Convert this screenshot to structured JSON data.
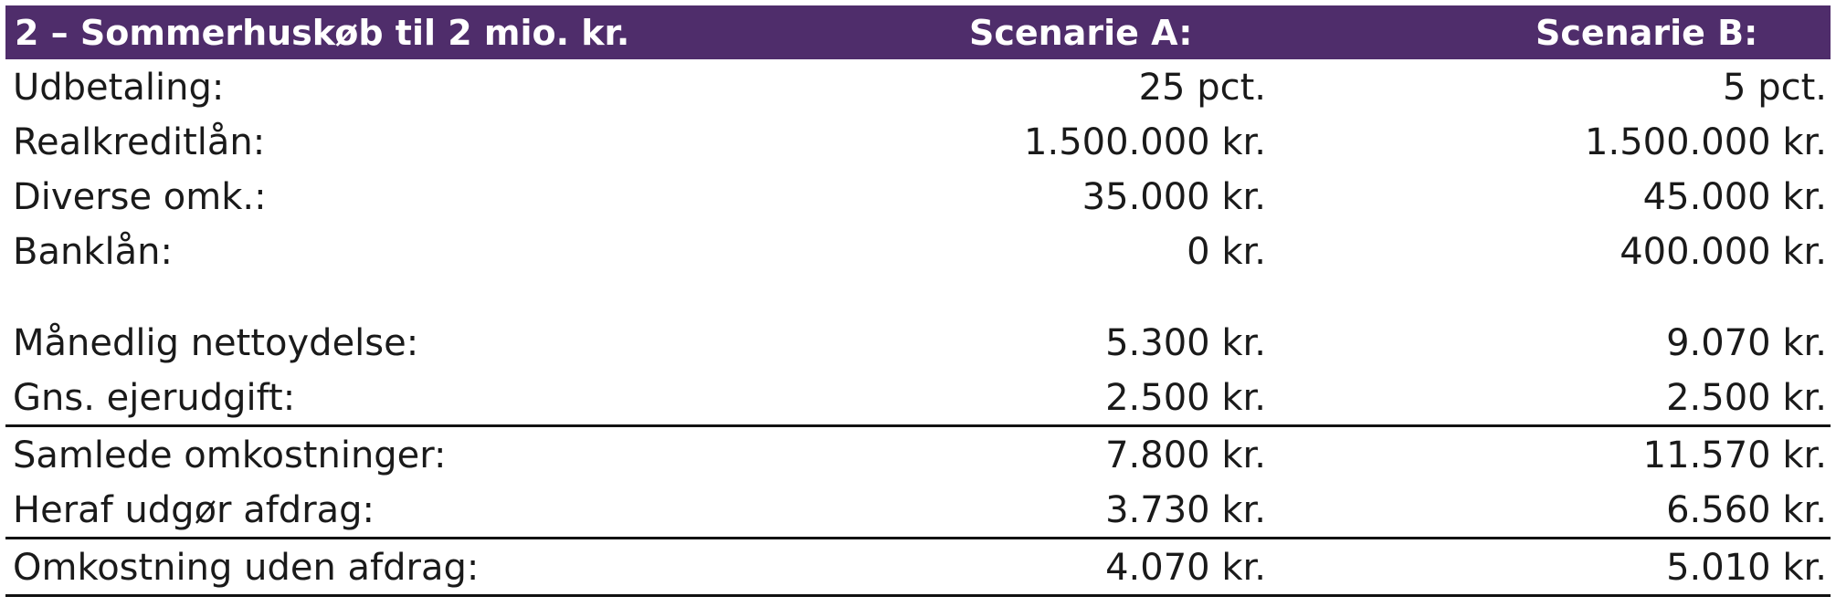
{
  "header": {
    "title": "2 – Sommerhuskøb til 2 mio. kr.",
    "col_a": "Scenarie A:",
    "col_b": "Scenarie B:"
  },
  "rows": [
    {
      "label": "Udbetaling:",
      "a": "25 pct.",
      "b": "5 pct."
    },
    {
      "label": "Realkreditlån:",
      "a": "1.500.000 kr.",
      "b": "1.500.000 kr."
    },
    {
      "label": "Diverse omk.:",
      "a": "35.000 kr.",
      "b": "45.000 kr."
    },
    {
      "label": "Banklån:",
      "a": "0 kr.",
      "b": "400.000 kr."
    },
    {
      "label": "Månedlig nettoydelse:",
      "a": "5.300 kr.",
      "b": "9.070 kr."
    },
    {
      "label": "Gns. ejerudgift:",
      "a": "2.500 kr.",
      "b": "2.500 kr."
    },
    {
      "label": "Samlede omkostninger:",
      "a": "7.800 kr.",
      "b": "11.570 kr."
    },
    {
      "label": "Heraf udgør afdrag:",
      "a": "3.730 kr.",
      "b": "6.560 kr."
    },
    {
      "label": "Omkostning uden afdrag:",
      "a": "4.070 kr.",
      "b": "5.010 kr."
    }
  ],
  "colors": {
    "header_bg": "#4f2d6b",
    "header_text": "#ffffff",
    "rule": "#111111"
  }
}
